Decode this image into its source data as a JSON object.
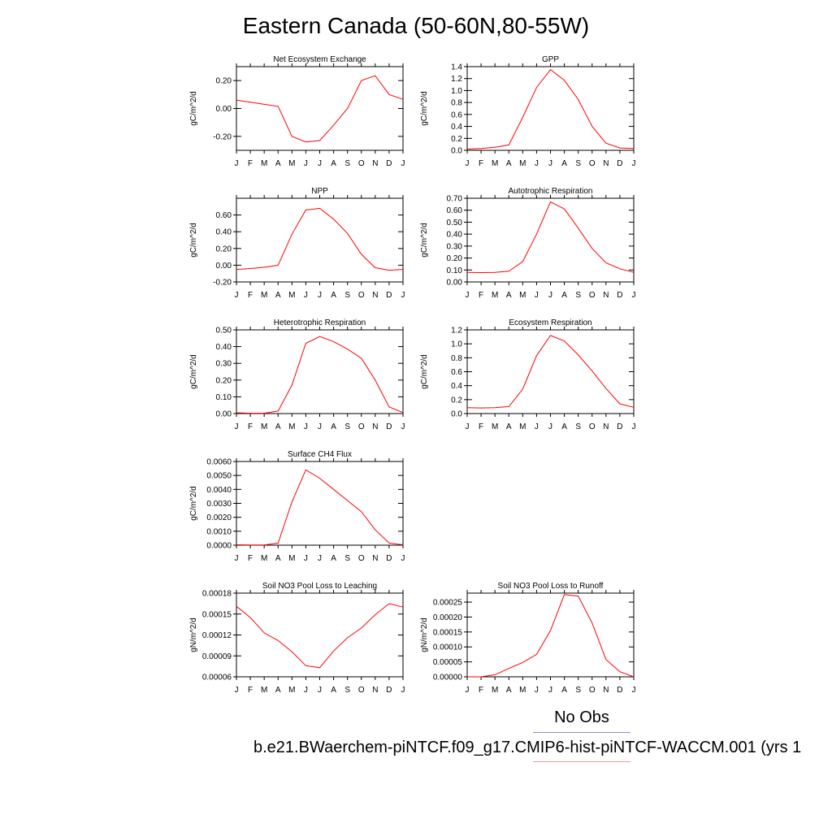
{
  "page": {
    "title": "Eastern Canada (50-60N,80-55W)",
    "legend": {
      "obs_label": "No Obs",
      "model_label": "b.e21.BWaerchem-piNTCF.f09_g17.CMIP6-hist-piNTCF-WACCM.001 (yrs 1",
      "obs_color": "#0000ff",
      "model_color": "#ff0000"
    }
  },
  "chart_data": [
    {
      "type": "line",
      "title": "Net Ecosystem Exchange",
      "ylabel": "gC/m^2/d",
      "x": [
        "J",
        "F",
        "M",
        "A",
        "M",
        "J",
        "J",
        "A",
        "S",
        "O",
        "N",
        "D",
        "J"
      ],
      "ylim": [
        -0.3,
        0.3
      ],
      "yticks": [
        -0.2,
        0.0,
        0.2
      ],
      "ytick_labels": [
        "-0.20",
        "0.00",
        "0.20"
      ],
      "series": [
        {
          "color": "#ff0000",
          "values": [
            0.06,
            0.045,
            0.03,
            0.015,
            -0.2,
            -0.24,
            -0.23,
            -0.12,
            0.0,
            0.2,
            0.235,
            0.1,
            0.065
          ]
        }
      ]
    },
    {
      "type": "line",
      "title": "GPP",
      "ylabel": "gC/m^2/d",
      "x": [
        "J",
        "F",
        "M",
        "A",
        "M",
        "J",
        "J",
        "A",
        "S",
        "O",
        "N",
        "D",
        "J"
      ],
      "ylim": [
        0,
        1.4
      ],
      "yticks": [
        0.0,
        0.2,
        0.4,
        0.6,
        0.8,
        1.0,
        1.2,
        1.4
      ],
      "ytick_labels": [
        "0.0",
        "0.2",
        "0.4",
        "0.6",
        "0.8",
        "1.0",
        "1.2",
        "1.4"
      ],
      "series": [
        {
          "color": "#ff0000",
          "values": [
            0.02,
            0.03,
            0.05,
            0.09,
            0.55,
            1.05,
            1.35,
            1.17,
            0.85,
            0.4,
            0.12,
            0.04,
            0.03
          ]
        }
      ]
    },
    {
      "type": "line",
      "title": "NPP",
      "ylabel": "gC/m^2/d",
      "x": [
        "J",
        "F",
        "M",
        "A",
        "M",
        "J",
        "J",
        "A",
        "S",
        "O",
        "N",
        "D",
        "J"
      ],
      "ylim": [
        -0.2,
        0.8
      ],
      "yticks": [
        -0.2,
        0.0,
        0.2,
        0.4,
        0.6
      ],
      "ytick_labels": [
        "-0.20",
        "0.00",
        "0.20",
        "0.40",
        "0.60"
      ],
      "series": [
        {
          "color": "#ff0000",
          "values": [
            -0.05,
            -0.04,
            -0.025,
            0.0,
            0.37,
            0.66,
            0.68,
            0.55,
            0.38,
            0.13,
            -0.03,
            -0.06,
            -0.05
          ]
        }
      ]
    },
    {
      "type": "line",
      "title": "Autotrophic Respiration",
      "ylabel": "gC/m^2/d",
      "x": [
        "J",
        "F",
        "M",
        "A",
        "M",
        "J",
        "J",
        "A",
        "S",
        "O",
        "N",
        "D",
        "J"
      ],
      "ylim": [
        0,
        0.7
      ],
      "yticks": [
        0.0,
        0.1,
        0.2,
        0.3,
        0.4,
        0.5,
        0.6,
        0.7
      ],
      "ytick_labels": [
        "0.00",
        "0.10",
        "0.20",
        "0.30",
        "0.40",
        "0.50",
        "0.60",
        "0.70"
      ],
      "series": [
        {
          "color": "#ff0000",
          "values": [
            0.08,
            0.078,
            0.08,
            0.09,
            0.17,
            0.4,
            0.67,
            0.61,
            0.45,
            0.28,
            0.16,
            0.11,
            0.08
          ]
        }
      ]
    },
    {
      "type": "line",
      "title": "Heterotrophic Respiration",
      "ylabel": "gC/m^2/d",
      "x": [
        "J",
        "F",
        "M",
        "A",
        "M",
        "J",
        "J",
        "A",
        "S",
        "O",
        "N",
        "D",
        "J"
      ],
      "ylim": [
        0,
        0.5
      ],
      "yticks": [
        0.0,
        0.1,
        0.2,
        0.3,
        0.4,
        0.5
      ],
      "ytick_labels": [
        "0.00",
        "0.10",
        "0.20",
        "0.30",
        "0.40",
        "0.50"
      ],
      "series": [
        {
          "color": "#ff0000",
          "values": [
            0.005,
            0.002,
            0.002,
            0.015,
            0.17,
            0.42,
            0.46,
            0.43,
            0.385,
            0.33,
            0.2,
            0.04,
            0.006
          ]
        }
      ]
    },
    {
      "type": "line",
      "title": "Ecosystem Respiration",
      "ylabel": "gC/m^2/d",
      "x": [
        "J",
        "F",
        "M",
        "A",
        "M",
        "J",
        "J",
        "A",
        "S",
        "O",
        "N",
        "D",
        "J"
      ],
      "ylim": [
        0,
        1.2
      ],
      "yticks": [
        0.0,
        0.2,
        0.4,
        0.6,
        0.8,
        1.0,
        1.2
      ],
      "ytick_labels": [
        "0.0",
        "0.2",
        "0.4",
        "0.6",
        "0.8",
        "1.0",
        "1.2"
      ],
      "series": [
        {
          "color": "#ff0000",
          "values": [
            0.085,
            0.08,
            0.085,
            0.1,
            0.35,
            0.83,
            1.12,
            1.04,
            0.84,
            0.61,
            0.36,
            0.14,
            0.09
          ]
        }
      ]
    },
    {
      "type": "line",
      "title": "Surface CH4 Flux",
      "ylabel": "gC/m^2/d",
      "x": [
        "J",
        "F",
        "M",
        "A",
        "M",
        "J",
        "J",
        "A",
        "S",
        "O",
        "N",
        "D",
        "J"
      ],
      "ylim": [
        0,
        0.006
      ],
      "yticks": [
        0,
        0.001,
        0.002,
        0.003,
        0.004,
        0.005,
        0.006
      ],
      "ytick_labels": [
        "0.0000",
        "0.0010",
        "0.0020",
        "0.0030",
        "0.0040",
        "0.0050",
        "0.0060"
      ],
      "series": [
        {
          "color": "#ff0000",
          "values": [
            3e-05,
            2e-05,
            2e-05,
            0.00015,
            0.0031,
            0.0054,
            0.0048,
            0.004,
            0.0032,
            0.0024,
            0.0011,
            0.00015,
            3e-05
          ]
        }
      ]
    },
    {
      "type": "line",
      "title": "Soil NO3 Pool Loss to Leaching",
      "ylabel": "gN/m^2/d",
      "x": [
        "J",
        "F",
        "M",
        "A",
        "M",
        "J",
        "J",
        "A",
        "S",
        "O",
        "N",
        "D",
        "J"
      ],
      "ylim": [
        6e-05,
        0.00018
      ],
      "yticks": [
        6e-05,
        9e-05,
        0.00012,
        0.00015,
        0.00018
      ],
      "ytick_labels": [
        "0.00006",
        "0.00009",
        "0.00012",
        "0.00015",
        "0.00018"
      ],
      "series": [
        {
          "color": "#ff0000",
          "values": [
            0.000161,
            0.000145,
            0.000123,
            0.000112,
            9.6e-05,
            7.6e-05,
            7.3e-05,
            9.7e-05,
            0.000116,
            0.00013,
            0.000149,
            0.000165,
            0.00016
          ]
        }
      ]
    },
    {
      "type": "line",
      "title": "Soil NO3 Pool Loss to Runoff",
      "ylabel": "gN/m^2/d",
      "x": [
        "J",
        "F",
        "M",
        "A",
        "M",
        "J",
        "J",
        "A",
        "S",
        "O",
        "N",
        "D",
        "J"
      ],
      "ylim": [
        0,
        0.00028
      ],
      "yticks": [
        0,
        5e-05,
        0.0001,
        0.00015,
        0.0002,
        0.00025
      ],
      "ytick_labels": [
        "0.00000",
        "0.00005",
        "0.00010",
        "0.00015",
        "0.00020",
        "0.00025"
      ],
      "series": [
        {
          "color": "#ff0000",
          "values": [
            0.0,
            0.0,
            7e-06,
            2.8e-05,
            4.8e-05,
            7.5e-05,
            0.000155,
            0.000275,
            0.00027,
            0.00018,
            5.8e-05,
            1.7e-05,
            0.0
          ]
        }
      ]
    }
  ]
}
